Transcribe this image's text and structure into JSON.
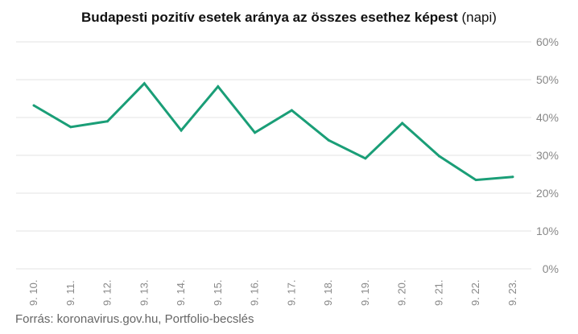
{
  "chart_data": {
    "type": "line",
    "title": "Budapesti pozitív esetek aránya az összes esethez képest",
    "title_suffix": "(napi)",
    "categories": [
      "9. 10.",
      "9. 11.",
      "9. 12.",
      "9. 13.",
      "9. 14.",
      "9. 15.",
      "9. 16.",
      "9. 17.",
      "9. 18.",
      "9. 19.",
      "9. 20.",
      "9. 21.",
      "9. 22.",
      "9. 23."
    ],
    "values": [
      43.2,
      37.5,
      39.0,
      49.0,
      36.6,
      48.2,
      36.0,
      41.9,
      34.0,
      29.2,
      38.5,
      29.8,
      23.5,
      24.3
    ],
    "ylim": [
      0,
      60
    ],
    "yticks": [
      0,
      10,
      20,
      30,
      40,
      50,
      60
    ],
    "ytick_labels": [
      "0%",
      "10%",
      "20%",
      "30%",
      "40%",
      "50%",
      "60%"
    ],
    "y_axis_position": "right",
    "grid": true,
    "line_color": "#1a9e77",
    "xlabel": "",
    "ylabel": ""
  },
  "source": "Forrás: koronavirus.gov.hu, Portfolio-becslés"
}
